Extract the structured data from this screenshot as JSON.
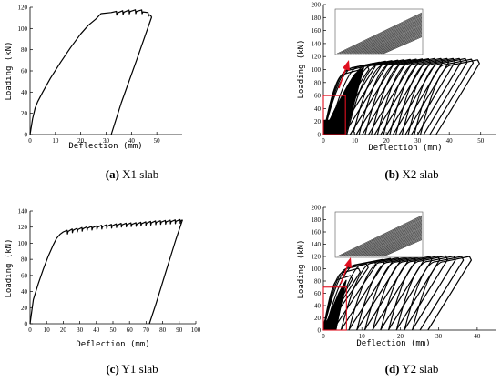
{
  "chart_data": [
    {
      "id": "a",
      "type": "line",
      "caption": {
        "letter": "(a)",
        "text": " X1 slab"
      },
      "xlabel": "Deflection (mm)",
      "ylabel": "Loading (kN)",
      "xlim": [
        0,
        60
      ],
      "ylim": [
        0,
        120
      ],
      "xticks": [
        0,
        10,
        20,
        30,
        40,
        50
      ],
      "yticks": [
        0,
        20,
        40,
        60,
        80,
        100,
        120
      ],
      "series": [
        {
          "kind": "monotonic",
          "x": [
            0,
            1,
            2,
            3,
            5,
            8,
            12,
            16,
            20,
            23,
            26,
            28,
            32,
            36,
            40,
            44,
            47,
            48
          ],
          "y": [
            0,
            15,
            25,
            31,
            40,
            53,
            68,
            82,
            95,
            103,
            109,
            114,
            115,
            116,
            117,
            117,
            114,
            111
          ],
          "serrations": {
            "x_start": 32,
            "x_end": 47,
            "count": 6,
            "drop": 3
          }
        },
        {
          "kind": "unloading",
          "x": [
            48,
            42,
            36,
            32
          ],
          "y": [
            111,
            70,
            30,
            0
          ]
        }
      ]
    },
    {
      "id": "b",
      "type": "line",
      "caption": {
        "letter": "(b)",
        "text": " X2 slab"
      },
      "xlabel": "Deflection (mm)",
      "ylabel": "Loading (kN)",
      "xlim": [
        0,
        55
      ],
      "ylim": [
        0,
        200
      ],
      "xticks": [
        0,
        10,
        20,
        30,
        40,
        50
      ],
      "yticks": [
        0,
        20,
        40,
        60,
        80,
        100,
        120,
        140,
        160,
        180,
        200
      ],
      "hysteresis": {
        "peak_envelope": [
          [
            2,
            22
          ],
          [
            4,
            42
          ],
          [
            6,
            60
          ],
          [
            8,
            78
          ],
          [
            10,
            93
          ],
          [
            13,
            104
          ],
          [
            16,
            110
          ],
          [
            20,
            113
          ],
          [
            25,
            115
          ],
          [
            30,
            116
          ],
          [
            35,
            117
          ],
          [
            40,
            117
          ],
          [
            45,
            117
          ],
          [
            49,
            115
          ]
        ],
        "cycles": 20
      },
      "zoom_region": {
        "x": [
          0,
          7
        ],
        "y": [
          0,
          60
        ]
      }
    },
    {
      "id": "c",
      "type": "line",
      "caption": {
        "letter": "(c)",
        "text": " Y1 slab"
      },
      "xlabel": "Deflection (mm)",
      "ylabel": "Loading (kN)",
      "xlim": [
        0,
        100
      ],
      "ylim": [
        0,
        140
      ],
      "xticks": [
        0,
        10,
        20,
        30,
        40,
        50,
        60,
        70,
        80,
        90,
        100
      ],
      "yticks": [
        0,
        20,
        40,
        60,
        80,
        100,
        120,
        140
      ],
      "series": [
        {
          "kind": "monotonic",
          "x": [
            0,
            2,
            5,
            8,
            11,
            14,
            16,
            18,
            20,
            25,
            35,
            45,
            55,
            65,
            75,
            85,
            92
          ],
          "y": [
            0,
            30,
            50,
            68,
            84,
            98,
            106,
            111,
            114,
            117,
            120,
            122,
            124,
            125,
            127,
            128,
            129
          ],
          "serrations": {
            "x_start": 20,
            "x_end": 91,
            "count": 24,
            "drop": 4
          }
        },
        {
          "kind": "unloading",
          "x": [
            92,
            88,
            82,
            76,
            72
          ],
          "y": [
            129,
            105,
            65,
            25,
            0
          ]
        }
      ]
    },
    {
      "id": "d",
      "type": "line",
      "caption": {
        "letter": "(d)",
        "text": " Y2 slab"
      },
      "xlabel": "Deflection (mm)",
      "ylabel": "Loading (kN)",
      "xlim": [
        0,
        45
      ],
      "ylim": [
        0,
        200
      ],
      "xticks": [
        0,
        10,
        20,
        30,
        40
      ],
      "yticks": [
        0,
        20,
        40,
        60,
        80,
        100,
        120,
        140,
        160,
        180,
        200
      ],
      "hysteresis": {
        "peak_envelope": [
          [
            1,
            15
          ],
          [
            2,
            30
          ],
          [
            3,
            45
          ],
          [
            4,
            60
          ],
          [
            5,
            72
          ],
          [
            6,
            82
          ],
          [
            8,
            95
          ],
          [
            10,
            105
          ],
          [
            13,
            112
          ],
          [
            16,
            116
          ],
          [
            20,
            118
          ],
          [
            24,
            119
          ],
          [
            28,
            120
          ],
          [
            32,
            121
          ],
          [
            35,
            120
          ],
          [
            38,
            120
          ]
        ],
        "cycles": 16
      },
      "zoom_region": {
        "x": [
          0,
          6
        ],
        "y": [
          0,
          70
        ]
      }
    }
  ]
}
